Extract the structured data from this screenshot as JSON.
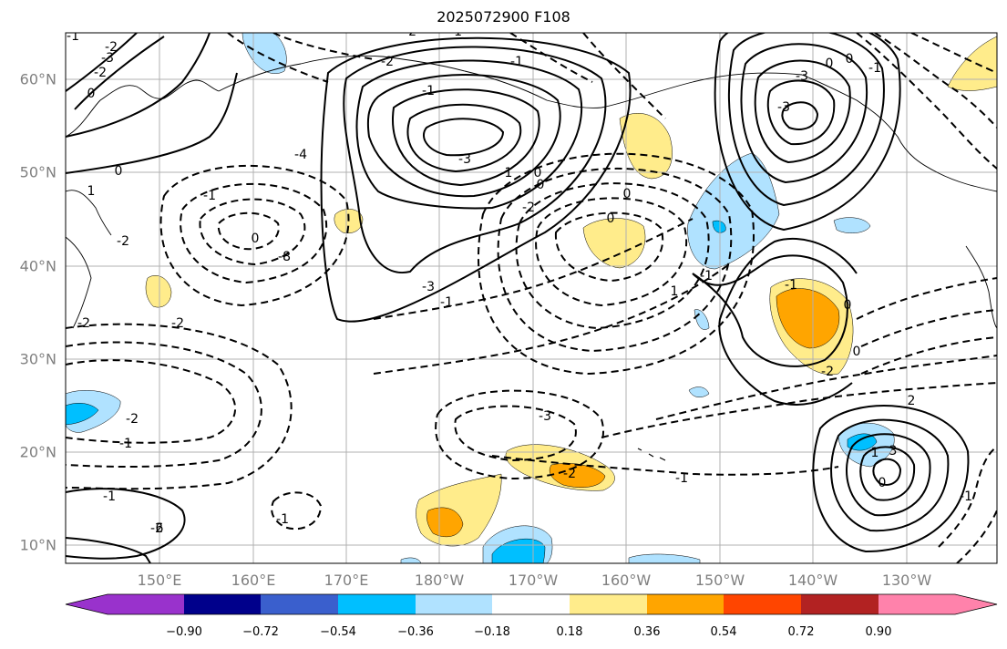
{
  "title": "2025072900 F108",
  "map": {
    "lat_labels": [
      "60°N",
      "50°N",
      "40°N",
      "30°N",
      "20°N",
      "10°N"
    ],
    "lon_labels": [
      "150°E",
      "160°E",
      "170°E",
      "180°W",
      "170°W",
      "160°W",
      "150°W",
      "140°W",
      "130°W"
    ],
    "grid": true,
    "contour_labels": [
      "-1",
      "-2",
      "-3",
      "-2",
      "0",
      "1",
      "0",
      "-2",
      "-2",
      "-2",
      "-2",
      "-1",
      "-1",
      "-2",
      "-1",
      "0",
      "-8",
      "-4",
      "-3",
      "1",
      "0",
      "0",
      "-2",
      "-3",
      "-1",
      "-2",
      "-2",
      "-1",
      "-1",
      "-1",
      "-3",
      "0",
      "0",
      "1",
      "-1",
      "-2",
      "-1",
      "-1",
      "6",
      "-3",
      "-3",
      "0",
      "0",
      "-1",
      "0",
      "-1",
      "0",
      "-2",
      "2",
      "1",
      "3",
      "0",
      "-1"
    ]
  },
  "colorbar": {
    "tick_labels": [
      "−0.90",
      "−0.72",
      "−0.54",
      "−0.36",
      "−0.18",
      "0.18",
      "0.36",
      "0.54",
      "0.72",
      "0.90"
    ],
    "colors": {
      "under": "#9932CC",
      "bins": [
        "#9932CC",
        "#00008B",
        "#3A5FCD",
        "#00BFFF",
        "#B0E2FF",
        "#FFFFFF",
        "#FFEC8B",
        "#FFA500",
        "#FF4500",
        "#B22222",
        "#FF82AB"
      ],
      "over": "#FF82AB"
    }
  },
  "fill_colors": {
    "pos1": "#FFEC8B",
    "pos2": "#FFA500",
    "neg1": "#B0E2FF",
    "neg2": "#00BFFF"
  }
}
